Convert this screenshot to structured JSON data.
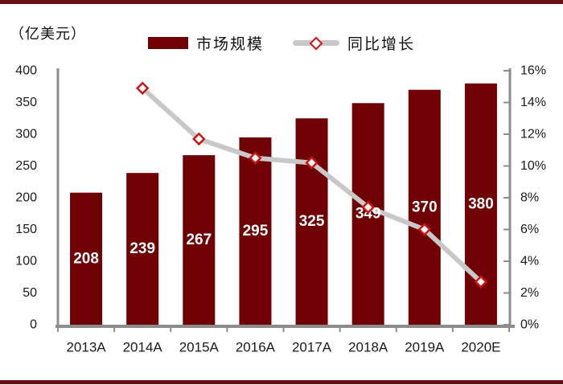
{
  "unit_label": "（亿美元）",
  "legend": {
    "bar_label": "市场规模",
    "line_label": "同比增长"
  },
  "colors": {
    "bar": "#6F0003",
    "border_rule": "#661013",
    "line": "#C8C8C8",
    "marker_stroke": "#CC1414",
    "marker_fill": "#FFFFFF",
    "axis": "#8C8C8C",
    "tick_text": "#1A1A1A",
    "bar_label_text": "#FFFFFF"
  },
  "chart_data": {
    "type": "bar",
    "subtype": "bar+line dual axis",
    "title": "",
    "xlabel": "",
    "ylabel_left": "（亿美元）",
    "ylabel_right": "%",
    "grid": false,
    "legend_position": "top",
    "categories": [
      "2013A",
      "2014A",
      "2015A",
      "2016A",
      "2017A",
      "2018A",
      "2019A",
      "2020E"
    ],
    "series": [
      {
        "name": "市场规模",
        "type": "bar",
        "axis": "left",
        "values": [
          208,
          239,
          267,
          295,
          325,
          349,
          370,
          380
        ],
        "labels": [
          "208",
          "239",
          "267",
          "295",
          "325",
          "349",
          "370",
          "380"
        ]
      },
      {
        "name": "同比增长",
        "type": "line",
        "axis": "right",
        "values": [
          null,
          14.9,
          11.7,
          10.5,
          10.2,
          7.4,
          6.0,
          2.7
        ]
      }
    ],
    "left_axis": {
      "min": 0,
      "max": 400,
      "step": 50,
      "tick_labels": [
        "0",
        "50",
        "100",
        "150",
        "200",
        "250",
        "300",
        "350",
        "400"
      ]
    },
    "right_axis": {
      "min": 0,
      "max": 16,
      "step": 2,
      "tick_labels": [
        "0%",
        "2%",
        "4%",
        "6%",
        "8%",
        "10%",
        "12%",
        "14%",
        "16%"
      ]
    }
  }
}
